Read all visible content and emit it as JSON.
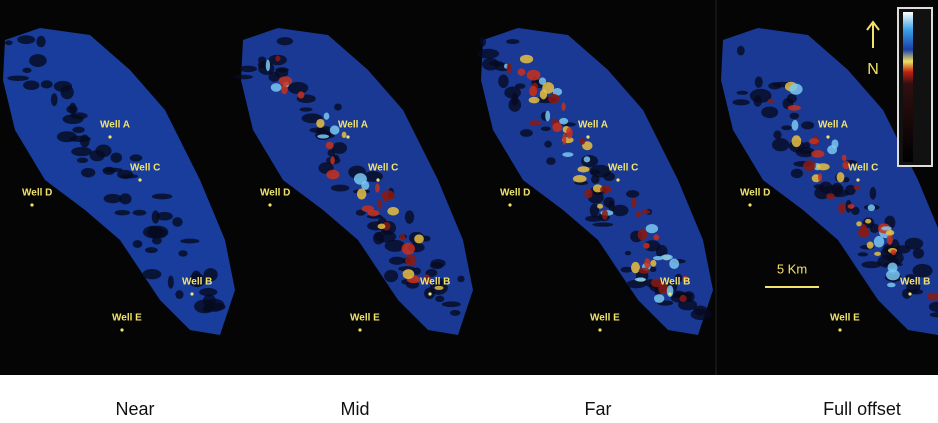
{
  "panels": [
    {
      "label": "Near",
      "wells": [
        "Well A",
        "Well C",
        "Well D",
        "Well B",
        "Well E"
      ]
    },
    {
      "label": "Mid",
      "wells": [
        "Well A",
        "Well C",
        "Well D",
        "Well B",
        "Well E"
      ]
    },
    {
      "label": "Far",
      "wells": [
        "Well A",
        "Well C",
        "Well D",
        "Well B",
        "Well E"
      ]
    },
    {
      "label": "Full offset",
      "wells": [
        "Well A",
        "Well C",
        "Well D",
        "Well B",
        "Well E"
      ]
    }
  ],
  "north": "N",
  "scale_bar": "5 Km"
}
